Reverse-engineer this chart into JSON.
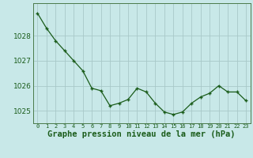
{
  "x": [
    0,
    1,
    2,
    3,
    4,
    5,
    6,
    7,
    8,
    9,
    10,
    11,
    12,
    13,
    14,
    15,
    16,
    17,
    18,
    19,
    20,
    21,
    22,
    23
  ],
  "y": [
    1028.9,
    1028.3,
    1027.8,
    1027.4,
    1027.0,
    1026.6,
    1025.9,
    1025.8,
    1025.2,
    1025.3,
    1025.45,
    1025.9,
    1025.75,
    1025.3,
    1024.95,
    1024.85,
    1024.95,
    1025.3,
    1025.55,
    1025.7,
    1026.0,
    1025.75,
    1025.75,
    1025.4
  ],
  "line_color": "#1a5c1a",
  "marker": "+",
  "marker_color": "#1a5c1a",
  "bg_color": "#c8e8e8",
  "grid_color": "#a8c8c8",
  "xlabel": "Graphe pression niveau de la mer (hPa)",
  "xlabel_color": "#1a5c1a",
  "tick_color": "#1a5c1a",
  "ylim": [
    1024.5,
    1029.3
  ],
  "yticks": [
    1025,
    1026,
    1027,
    1028
  ],
  "xticks": [
    0,
    1,
    2,
    3,
    4,
    5,
    6,
    7,
    8,
    9,
    10,
    11,
    12,
    13,
    14,
    15,
    16,
    17,
    18,
    19,
    20,
    21,
    22,
    23
  ],
  "xlim": [
    -0.5,
    23.5
  ],
  "marker_size": 3.5,
  "line_width": 0.9,
  "border_color": "#4a7a4a",
  "ytick_fontsize": 6.5,
  "xtick_fontsize": 5.0,
  "xlabel_fontsize": 7.5
}
